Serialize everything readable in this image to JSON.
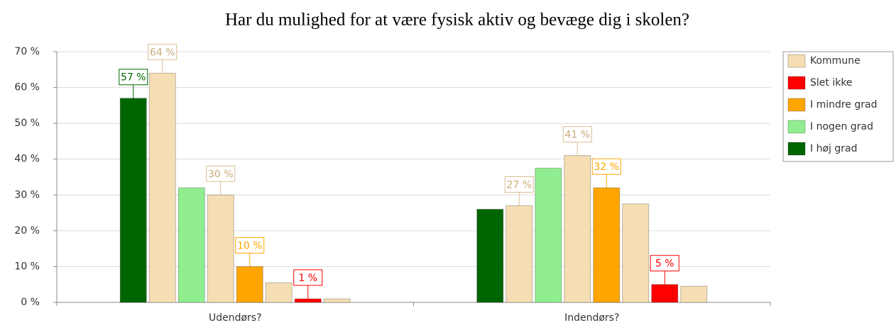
{
  "chart_data": {
    "type": "bar",
    "title": "Har du mulighed for at være fysisk aktiv og bevæge dig i skolen?",
    "categories": [
      "Udendørs?",
      "Indendørs?"
    ],
    "series": [
      {
        "name": "I høj grad",
        "color": "#006400",
        "values": [
          57,
          26
        ],
        "value_labels": [
          "57 %",
          null
        ],
        "kommune_values": [
          64,
          27
        ],
        "kommune_labels": [
          "64 %",
          "27 %"
        ]
      },
      {
        "name": "I nogen grad",
        "color": "#90ee90",
        "values": [
          32,
          37.5
        ],
        "value_labels": [
          null,
          null
        ],
        "kommune_values": [
          30,
          41
        ],
        "kommune_labels": [
          "30 %",
          "41 %"
        ]
      },
      {
        "name": "I mindre grad",
        "color": "#ffa500",
        "values": [
          10,
          32
        ],
        "value_labels": [
          "10 %",
          "32 %"
        ],
        "kommune_values": [
          5.5,
          27.5
        ],
        "kommune_labels": [
          null,
          null
        ]
      },
      {
        "name": "Slet ikke",
        "color": "#ff0000",
        "values": [
          1,
          5
        ],
        "value_labels": [
          "1 %",
          "5 %"
        ],
        "kommune_values": [
          1,
          4.5
        ],
        "kommune_labels": [
          null,
          null
        ]
      }
    ],
    "kommune": {
      "name": "Kommune",
      "color": "#f5deb3"
    },
    "ylim": [
      0,
      70
    ],
    "yticks": [
      {
        "value": 0,
        "label": "0 %"
      },
      {
        "value": 10,
        "label": "10 %"
      },
      {
        "value": 20,
        "label": "20 %"
      },
      {
        "value": 30,
        "label": "30 %"
      },
      {
        "value": 40,
        "label": "40 %"
      },
      {
        "value": 50,
        "label": "50 %"
      },
      {
        "value": 60,
        "label": "60 %"
      },
      {
        "value": 70,
        "label": "70 %"
      }
    ],
    "grid": true,
    "legend": "right"
  }
}
